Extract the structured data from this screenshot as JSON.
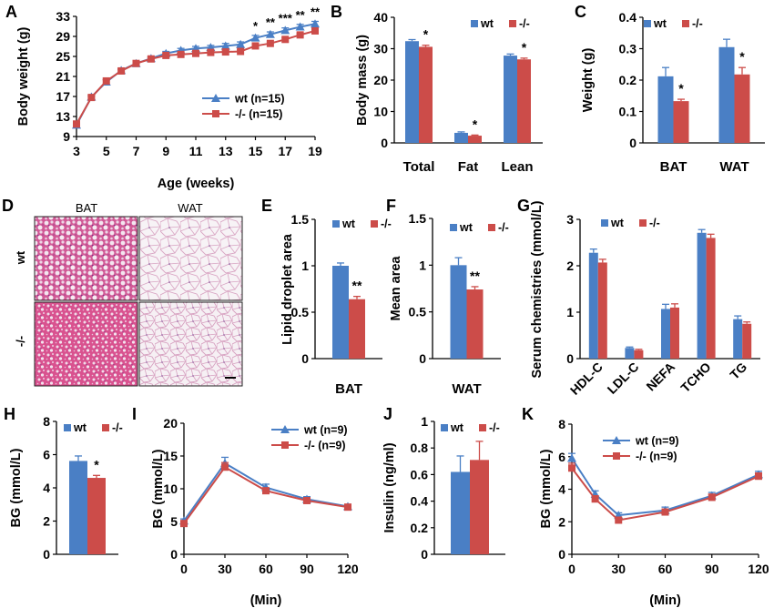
{
  "colors": {
    "wt": "#4a7fc5",
    "ko": "#cc4c49",
    "axis": "#000000"
  },
  "chart_data": [
    {
      "id": "A",
      "letter": "A",
      "type": "line",
      "xlabel": "Age (weeks)",
      "ylabel": "Body weight (g)",
      "xlim": [
        3,
        19
      ],
      "ylim": [
        9,
        33
      ],
      "xticks": [
        3,
        5,
        7,
        9,
        11,
        13,
        15,
        17,
        19
      ],
      "yticks": [
        9,
        13,
        17,
        21,
        25,
        29,
        33
      ],
      "x": [
        3,
        4,
        5,
        6,
        7,
        8,
        9,
        10,
        11,
        12,
        13,
        14,
        15,
        16,
        17,
        18,
        19
      ],
      "series": [
        {
          "name": "wt (n=15)",
          "key": "wt",
          "marker": "triangle",
          "values": [
            11.3,
            16.9,
            19.9,
            22.2,
            23.6,
            24.6,
            25.6,
            26.2,
            26.6,
            26.8,
            27.1,
            27.4,
            28.7,
            29.4,
            30.2,
            30.9,
            31.5
          ],
          "err": [
            0.3,
            0.3,
            0.4,
            0.3,
            0.3,
            0.3,
            0.4,
            0.4,
            0.4,
            0.4,
            0.5,
            0.5,
            0.5,
            0.5,
            0.5,
            0.5,
            0.5
          ]
        },
        {
          "name": "-/- (n=15)",
          "key": "ko",
          "marker": "square",
          "values": [
            11.5,
            16.8,
            20.1,
            22.1,
            23.6,
            24.5,
            25.2,
            25.4,
            25.6,
            25.8,
            25.9,
            26.0,
            27.1,
            27.6,
            28.4,
            29.3,
            30.1
          ],
          "err": [
            0.3,
            0.3,
            0.3,
            0.3,
            0.3,
            0.3,
            0.3,
            0.3,
            0.3,
            0.3,
            0.3,
            0.3,
            0.3,
            0.3,
            0.3,
            0.3,
            0.3
          ]
        }
      ],
      "annotations": [
        {
          "x": 15,
          "text": "*"
        },
        {
          "x": 16,
          "text": "**"
        },
        {
          "x": 17,
          "text": "***"
        },
        {
          "x": 18,
          "text": "**"
        },
        {
          "x": 19,
          "text": "**"
        }
      ]
    },
    {
      "id": "B",
      "letter": "B",
      "type": "bar",
      "ylabel": "Body mass (g)",
      "ylim": [
        0,
        40
      ],
      "yticks": [
        0,
        10,
        20,
        30,
        40
      ],
      "categories": [
        "Total",
        "Fat",
        "Lean"
      ],
      "series": [
        {
          "name": "wt",
          "key": "wt",
          "values": [
            32.4,
            3.2,
            27.8
          ],
          "err": [
            0.5,
            0.3,
            0.5
          ]
        },
        {
          "name": "-/-",
          "key": "ko",
          "values": [
            30.6,
            2.3,
            26.6
          ],
          "err": [
            0.5,
            0.2,
            0.4
          ]
        }
      ],
      "annotations": [
        "*",
        "*",
        "*"
      ]
    },
    {
      "id": "C",
      "letter": "C",
      "type": "bar",
      "ylabel": "Weight (g)",
      "ylim": [
        0,
        0.4
      ],
      "yticks": [
        0,
        0.1,
        0.2,
        0.3,
        0.4
      ],
      "categories": [
        "BAT",
        "WAT"
      ],
      "series": [
        {
          "name": "wt",
          "key": "wt",
          "values": [
            0.212,
            0.305
          ],
          "err": [
            0.028,
            0.025
          ]
        },
        {
          "name": "-/-",
          "key": "ko",
          "values": [
            0.133,
            0.218
          ],
          "err": [
            0.006,
            0.022
          ]
        }
      ],
      "annotations": [
        "*",
        "*"
      ]
    },
    {
      "id": "E",
      "letter": "E",
      "type": "bar",
      "ylabel": "Lipid droplet area",
      "ylim": [
        0,
        1.5
      ],
      "yticks": [
        0,
        0.5,
        1,
        1.5
      ],
      "categories": [
        "BAT"
      ],
      "series": [
        {
          "name": "wt",
          "key": "wt",
          "values": [
            1.0
          ],
          "err": [
            0.03
          ]
        },
        {
          "name": "-/-",
          "key": "ko",
          "values": [
            0.64
          ],
          "err": [
            0.03
          ]
        }
      ],
      "annotations": [
        "**"
      ]
    },
    {
      "id": "F",
      "letter": "F",
      "type": "bar",
      "ylabel": "Mean area",
      "ylim": [
        0,
        1.5
      ],
      "yticks": [
        0,
        0.5,
        1,
        1.5
      ],
      "categories": [
        "WAT"
      ],
      "series": [
        {
          "name": "wt",
          "key": "wt",
          "values": [
            1.0
          ],
          "err": [
            0.08
          ]
        },
        {
          "name": "-/-",
          "key": "ko",
          "values": [
            0.74
          ],
          "err": [
            0.03
          ]
        }
      ],
      "annotations": [
        "**"
      ]
    },
    {
      "id": "G",
      "letter": "G",
      "type": "bar",
      "ylabel": "Serum chemistries (mmol/L)",
      "ylim": [
        0,
        3
      ],
      "yticks": [
        0,
        1,
        2,
        3
      ],
      "categories": [
        "HDL-C",
        "LDL-C",
        "NEFA",
        "TCHO",
        "TG"
      ],
      "series": [
        {
          "name": "wt",
          "key": "wt",
          "values": [
            2.28,
            0.23,
            1.07,
            2.71,
            0.85
          ],
          "err": [
            0.08,
            0.02,
            0.1,
            0.07,
            0.07
          ]
        },
        {
          "name": "-/-",
          "key": "ko",
          "values": [
            2.07,
            0.18,
            1.1,
            2.6,
            0.75
          ],
          "err": [
            0.07,
            0.02,
            0.08,
            0.08,
            0.04
          ]
        }
      ]
    },
    {
      "id": "H",
      "letter": "H",
      "type": "bar",
      "ylabel": "BG (mmol/L)",
      "ylim": [
        0,
        8
      ],
      "yticks": [
        0,
        2,
        4,
        6,
        8
      ],
      "categories": [
        ""
      ],
      "series": [
        {
          "name": "wt",
          "key": "wt",
          "values": [
            5.62
          ],
          "err": [
            0.3
          ]
        },
        {
          "name": "-/-",
          "key": "ko",
          "values": [
            4.6
          ],
          "err": [
            0.15
          ]
        }
      ],
      "annotations": [
        "*"
      ]
    },
    {
      "id": "I",
      "letter": "I",
      "type": "line",
      "xlabel": "(Min)",
      "ylabel": "BG (mmol/L)",
      "xlim": [
        0,
        120
      ],
      "ylim": [
        0,
        20
      ],
      "xticks": [
        0,
        30,
        60,
        90,
        120
      ],
      "yticks": [
        0,
        5,
        10,
        15,
        20
      ],
      "x": [
        0,
        30,
        60,
        90,
        120
      ],
      "series": [
        {
          "name": "wt (n=9)",
          "key": "wt",
          "marker": "triangle",
          "values": [
            5.1,
            13.9,
            10.2,
            8.4,
            7.3
          ],
          "err": [
            0.3,
            0.9,
            0.5,
            0.4,
            0.3
          ]
        },
        {
          "name": "-/- (n=9)",
          "key": "ko",
          "marker": "square",
          "values": [
            4.7,
            13.3,
            9.7,
            8.2,
            7.2
          ],
          "err": [
            0.3,
            0.7,
            0.4,
            0.3,
            0.3
          ]
        }
      ]
    },
    {
      "id": "J",
      "letter": "J",
      "type": "bar",
      "ylabel": "Insulin (ng/ml)",
      "ylim": [
        0,
        1
      ],
      "yticks": [
        0,
        0.2,
        0.4,
        0.6,
        0.8,
        1
      ],
      "categories": [
        ""
      ],
      "series": [
        {
          "name": "wt",
          "key": "wt",
          "values": [
            0.62
          ],
          "err": [
            0.12
          ]
        },
        {
          "name": "-/-",
          "key": "ko",
          "values": [
            0.71
          ],
          "err": [
            0.14
          ]
        }
      ]
    },
    {
      "id": "K",
      "letter": "K",
      "type": "line",
      "xlabel": "(Min)",
      "ylabel": "BG (mmol/L)",
      "xlim": [
        0,
        120
      ],
      "ylim": [
        0,
        8
      ],
      "xticks": [
        0,
        30,
        60,
        90,
        120
      ],
      "yticks": [
        0,
        2,
        4,
        6,
        8
      ],
      "x": [
        0,
        15,
        30,
        60,
        90,
        120
      ],
      "series": [
        {
          "name": "wt (n=9)",
          "key": "wt",
          "marker": "triangle",
          "values": [
            5.9,
            3.7,
            2.4,
            2.7,
            3.6,
            4.9
          ],
          "err": [
            0.3,
            0.2,
            0.15,
            0.2,
            0.2,
            0.2
          ]
        },
        {
          "name": "-/- (n=9)",
          "key": "ko",
          "marker": "square",
          "values": [
            5.3,
            3.4,
            2.1,
            2.6,
            3.5,
            4.8
          ],
          "err": [
            0.3,
            0.2,
            0.1,
            0.15,
            0.2,
            0.2
          ]
        }
      ]
    }
  ],
  "panel_d": {
    "letter": "D",
    "col_labels": [
      "BAT",
      "WAT"
    ],
    "row_labels": [
      "wt",
      "-/-"
    ]
  }
}
